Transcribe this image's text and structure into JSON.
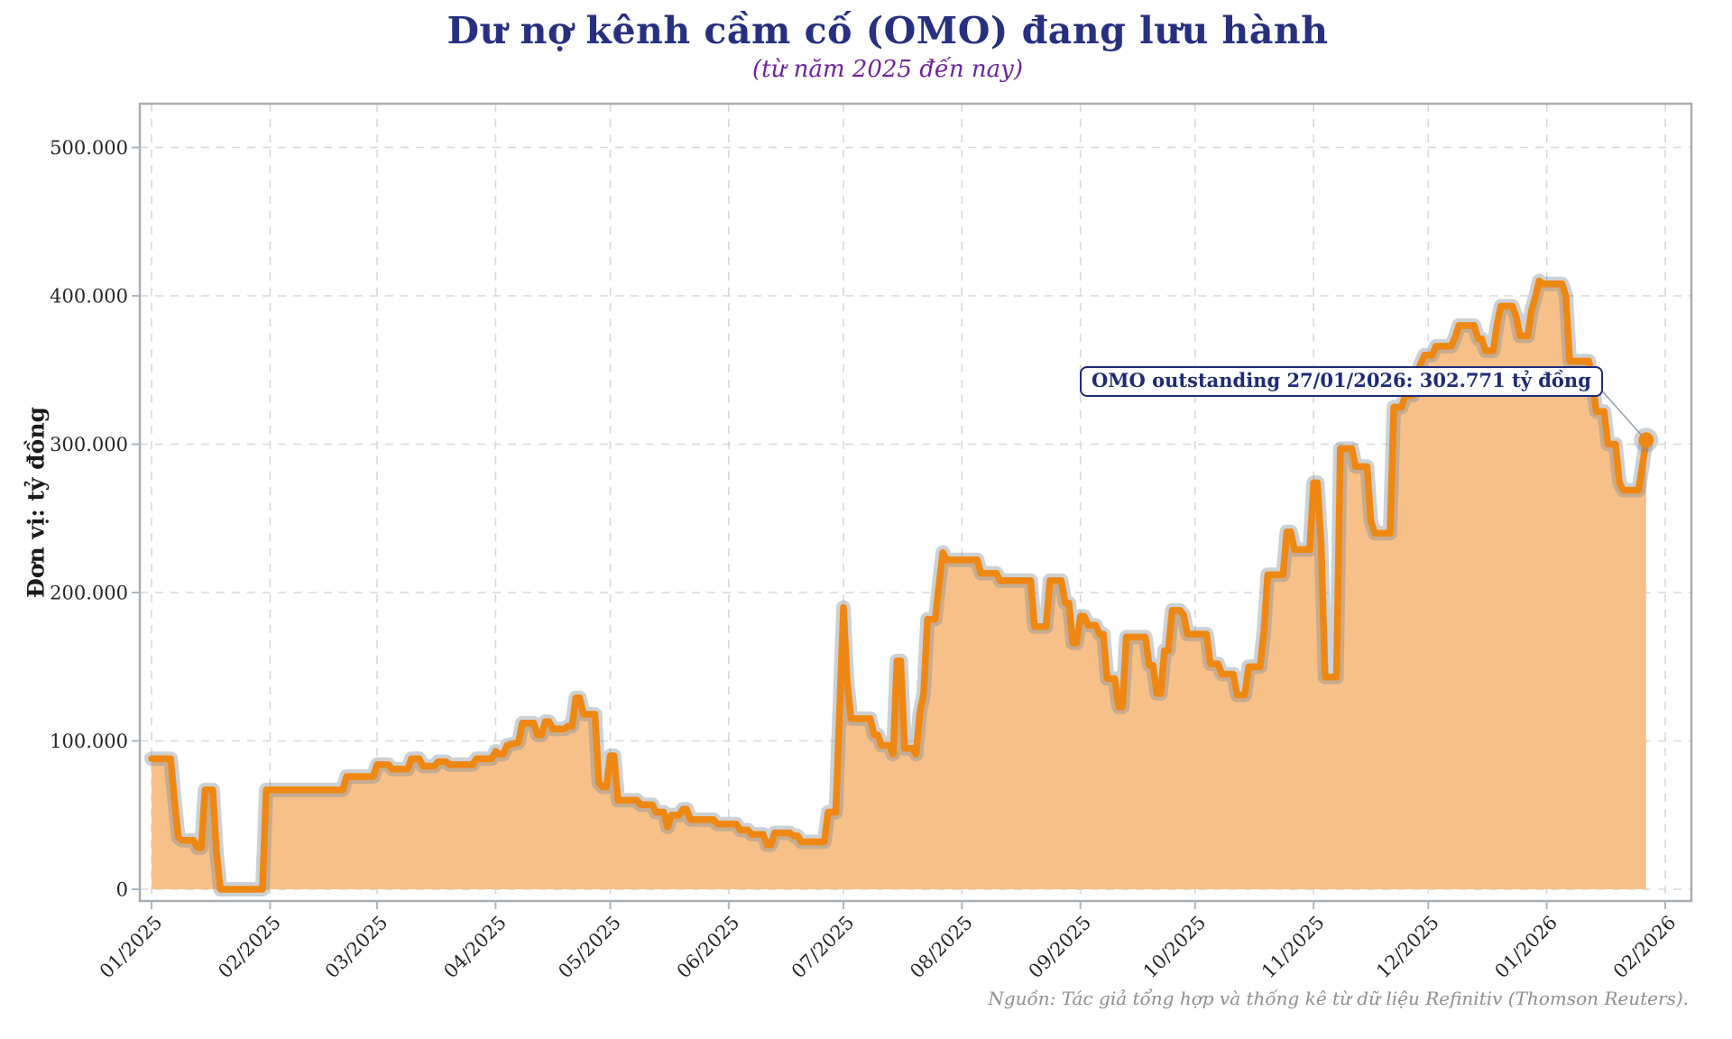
{
  "title": "Dư nợ kênh cầm cố (OMO) đang lưu hành",
  "subtitle": "(từ năm 2025 đến nay)",
  "source": "Nguồn: Tác giả tổng hợp và thống kê từ dữ liệu Refinitiv (Thomson Reuters).",
  "annotation": {
    "text": "OMO outstanding 27/01/2026: 302.771 tỷ đồng",
    "point_date": "2026-01-27",
    "point_value": 302771
  },
  "colors": {
    "line": "#ef8812",
    "fill": "#f7c088",
    "halo": "rgba(127,140,152,0.40)",
    "grid": "#d8d8d8",
    "border": "#a9aeb3",
    "tick_mark": "#a9b7c1",
    "leader": "#9aa5ad",
    "title": "#273080",
    "subtitle": "#6f229c",
    "annotation": "#1d2b76",
    "tick_text": "#262626",
    "source_text": "#8e8e8e"
  },
  "chart_data": {
    "type": "area",
    "title": "Dư nợ kênh cầm cố (OMO) đang lưu hành",
    "subtitle": "(từ năm 2025 đến nay)",
    "ylabel": "Đơn vị: tỷ đồng",
    "xlabel": "",
    "grid": true,
    "ylim": [
      0,
      530000
    ],
    "x_range": [
      "2025-01-01",
      "2026-02-01"
    ],
    "y_ticks": [
      {
        "value": 0,
        "label": "0"
      },
      {
        "value": 100000,
        "label": "100.000"
      },
      {
        "value": 200000,
        "label": "200.000"
      },
      {
        "value": 300000,
        "label": "300.000"
      },
      {
        "value": 400000,
        "label": "400.000"
      },
      {
        "value": 500000,
        "label": "500.000"
      }
    ],
    "x_ticks": [
      "01/2025",
      "02/2025",
      "03/2025",
      "04/2025",
      "05/2025",
      "06/2025",
      "07/2025",
      "08/2025",
      "09/2025",
      "10/2025",
      "11/2025",
      "12/2025",
      "01/2026",
      "02/2026"
    ],
    "series_name": "OMO outstanding (tỷ đồng)",
    "points": [
      [
        "2025-01-01",
        88000
      ],
      [
        "2025-01-06",
        88000
      ],
      [
        "2025-01-07",
        60000
      ],
      [
        "2025-01-08",
        35000
      ],
      [
        "2025-01-09",
        33000
      ],
      [
        "2025-01-12",
        33000
      ],
      [
        "2025-01-13",
        28000
      ],
      [
        "2025-01-14",
        28000
      ],
      [
        "2025-01-15",
        67000
      ],
      [
        "2025-01-17",
        67000
      ],
      [
        "2025-01-18",
        25000
      ],
      [
        "2025-01-19",
        0
      ],
      [
        "2025-01-30",
        0
      ],
      [
        "2025-01-31",
        67000
      ],
      [
        "2025-02-20",
        67000
      ],
      [
        "2025-02-21",
        76000
      ],
      [
        "2025-02-28",
        76000
      ],
      [
        "2025-03-01",
        84000
      ],
      [
        "2025-03-04",
        84000
      ],
      [
        "2025-03-05",
        81000
      ],
      [
        "2025-03-09",
        81000
      ],
      [
        "2025-03-10",
        88000
      ],
      [
        "2025-03-12",
        88000
      ],
      [
        "2025-03-13",
        83000
      ],
      [
        "2025-03-16",
        83000
      ],
      [
        "2025-03-17",
        86000
      ],
      [
        "2025-03-19",
        86000
      ],
      [
        "2025-03-20",
        84000
      ],
      [
        "2025-03-26",
        84000
      ],
      [
        "2025-03-27",
        88000
      ],
      [
        "2025-03-31",
        88000
      ],
      [
        "2025-04-01",
        93000
      ],
      [
        "2025-04-02",
        91000
      ],
      [
        "2025-04-03",
        91000
      ],
      [
        "2025-04-04",
        97000
      ],
      [
        "2025-04-07",
        99000
      ],
      [
        "2025-04-08",
        112000
      ],
      [
        "2025-04-11",
        112000
      ],
      [
        "2025-04-12",
        104000
      ],
      [
        "2025-04-13",
        104000
      ],
      [
        "2025-04-14",
        113000
      ],
      [
        "2025-04-15",
        113000
      ],
      [
        "2025-04-16",
        108000
      ],
      [
        "2025-04-19",
        108000
      ],
      [
        "2025-04-20",
        110000
      ],
      [
        "2025-04-21",
        110000
      ],
      [
        "2025-04-22",
        129000
      ],
      [
        "2025-04-23",
        129000
      ],
      [
        "2025-04-24",
        118000
      ],
      [
        "2025-04-27",
        118000
      ],
      [
        "2025-04-28",
        72000
      ],
      [
        "2025-04-29",
        69000
      ],
      [
        "2025-04-30",
        69000
      ],
      [
        "2025-05-01",
        90000
      ],
      [
        "2025-05-02",
        90000
      ],
      [
        "2025-05-03",
        60000
      ],
      [
        "2025-05-08",
        60000
      ],
      [
        "2025-05-09",
        57000
      ],
      [
        "2025-05-12",
        57000
      ],
      [
        "2025-05-13",
        52000
      ],
      [
        "2025-05-15",
        52000
      ],
      [
        "2025-05-16",
        42000
      ],
      [
        "2025-05-17",
        50000
      ],
      [
        "2025-05-19",
        50000
      ],
      [
        "2025-05-20",
        54000
      ],
      [
        "2025-05-21",
        54000
      ],
      [
        "2025-05-22",
        47000
      ],
      [
        "2025-05-28",
        47000
      ],
      [
        "2025-05-29",
        44000
      ],
      [
        "2025-06-03",
        44000
      ],
      [
        "2025-06-04",
        40000
      ],
      [
        "2025-06-06",
        40000
      ],
      [
        "2025-06-07",
        37000
      ],
      [
        "2025-06-10",
        37000
      ],
      [
        "2025-06-11",
        30000
      ],
      [
        "2025-06-12",
        30000
      ],
      [
        "2025-06-13",
        38000
      ],
      [
        "2025-06-17",
        38000
      ],
      [
        "2025-06-18",
        36000
      ],
      [
        "2025-06-19",
        36000
      ],
      [
        "2025-06-20",
        32000
      ],
      [
        "2025-06-26",
        32000
      ],
      [
        "2025-06-27",
        52000
      ],
      [
        "2025-06-29",
        52000
      ],
      [
        "2025-06-30",
        120000
      ],
      [
        "2025-07-01",
        190000
      ],
      [
        "2025-07-02",
        140000
      ],
      [
        "2025-07-03",
        115000
      ],
      [
        "2025-07-08",
        115000
      ],
      [
        "2025-07-09",
        104000
      ],
      [
        "2025-07-10",
        104000
      ],
      [
        "2025-07-11",
        97000
      ],
      [
        "2025-07-13",
        97000
      ],
      [
        "2025-07-14",
        91000
      ],
      [
        "2025-07-15",
        154000
      ],
      [
        "2025-07-16",
        154000
      ],
      [
        "2025-07-17",
        95000
      ],
      [
        "2025-07-19",
        95000
      ],
      [
        "2025-07-20",
        91000
      ],
      [
        "2025-07-21",
        119000
      ],
      [
        "2025-07-22",
        132000
      ],
      [
        "2025-07-23",
        182000
      ],
      [
        "2025-07-25",
        182000
      ],
      [
        "2025-07-26",
        205000
      ],
      [
        "2025-07-27",
        227000
      ],
      [
        "2025-07-28",
        222000
      ],
      [
        "2025-08-05",
        222000
      ],
      [
        "2025-08-06",
        213000
      ],
      [
        "2025-08-10",
        213000
      ],
      [
        "2025-08-11",
        208000
      ],
      [
        "2025-08-19",
        208000
      ],
      [
        "2025-08-20",
        177000
      ],
      [
        "2025-08-23",
        177000
      ],
      [
        "2025-08-24",
        208000
      ],
      [
        "2025-08-27",
        208000
      ],
      [
        "2025-08-28",
        193000
      ],
      [
        "2025-08-29",
        193000
      ],
      [
        "2025-08-30",
        166000
      ],
      [
        "2025-08-31",
        166000
      ],
      [
        "2025-09-01",
        184000
      ],
      [
        "2025-09-02",
        184000
      ],
      [
        "2025-09-03",
        178000
      ],
      [
        "2025-09-05",
        178000
      ],
      [
        "2025-09-06",
        172000
      ],
      [
        "2025-09-07",
        172000
      ],
      [
        "2025-09-08",
        142000
      ],
      [
        "2025-09-10",
        142000
      ],
      [
        "2025-09-11",
        123000
      ],
      [
        "2025-09-12",
        123000
      ],
      [
        "2025-09-13",
        170000
      ],
      [
        "2025-09-18",
        170000
      ],
      [
        "2025-09-19",
        151000
      ],
      [
        "2025-09-20",
        151000
      ],
      [
        "2025-09-21",
        132000
      ],
      [
        "2025-09-22",
        132000
      ],
      [
        "2025-09-23",
        161000
      ],
      [
        "2025-09-24",
        161000
      ],
      [
        "2025-09-25",
        188000
      ],
      [
        "2025-09-27",
        188000
      ],
      [
        "2025-09-28",
        185000
      ],
      [
        "2025-09-29",
        172000
      ],
      [
        "2025-10-04",
        172000
      ],
      [
        "2025-10-05",
        152000
      ],
      [
        "2025-10-07",
        152000
      ],
      [
        "2025-10-08",
        145000
      ],
      [
        "2025-10-11",
        145000
      ],
      [
        "2025-10-12",
        131000
      ],
      [
        "2025-10-14",
        131000
      ],
      [
        "2025-10-15",
        150000
      ],
      [
        "2025-10-18",
        150000
      ],
      [
        "2025-10-19",
        174000
      ],
      [
        "2025-10-20",
        212000
      ],
      [
        "2025-10-24",
        212000
      ],
      [
        "2025-10-25",
        241000
      ],
      [
        "2025-10-26",
        241000
      ],
      [
        "2025-10-27",
        229000
      ],
      [
        "2025-10-31",
        229000
      ],
      [
        "2025-11-01",
        274000
      ],
      [
        "2025-11-02",
        274000
      ],
      [
        "2025-11-03",
        232000
      ],
      [
        "2025-11-04",
        143000
      ],
      [
        "2025-11-07",
        143000
      ],
      [
        "2025-11-08",
        297000
      ],
      [
        "2025-11-11",
        297000
      ],
      [
        "2025-11-12",
        285000
      ],
      [
        "2025-11-15",
        285000
      ],
      [
        "2025-11-16",
        248000
      ],
      [
        "2025-11-17",
        240000
      ],
      [
        "2025-11-21",
        240000
      ],
      [
        "2025-11-22",
        325000
      ],
      [
        "2025-11-24",
        325000
      ],
      [
        "2025-11-25",
        333000
      ],
      [
        "2025-11-27",
        333000
      ],
      [
        "2025-11-28",
        348000
      ],
      [
        "2025-11-30",
        360000
      ],
      [
        "2025-12-02",
        360000
      ],
      [
        "2025-12-03",
        366000
      ],
      [
        "2025-12-07",
        366000
      ],
      [
        "2025-12-08",
        372000
      ],
      [
        "2025-12-09",
        380000
      ],
      [
        "2025-12-13",
        380000
      ],
      [
        "2025-12-14",
        371000
      ],
      [
        "2025-12-15",
        371000
      ],
      [
        "2025-12-16",
        363000
      ],
      [
        "2025-12-18",
        363000
      ],
      [
        "2025-12-19",
        381000
      ],
      [
        "2025-12-20",
        393000
      ],
      [
        "2025-12-23",
        393000
      ],
      [
        "2025-12-24",
        386000
      ],
      [
        "2025-12-25",
        373000
      ],
      [
        "2025-12-27",
        373000
      ],
      [
        "2025-12-28",
        390000
      ],
      [
        "2025-12-29",
        399000
      ],
      [
        "2025-12-30",
        410000
      ],
      [
        "2025-12-31",
        408000
      ],
      [
        "2026-01-05",
        408000
      ],
      [
        "2026-01-06",
        400000
      ],
      [
        "2026-01-07",
        356000
      ],
      [
        "2026-01-12",
        356000
      ],
      [
        "2026-01-13",
        340000
      ],
      [
        "2026-01-14",
        322000
      ],
      [
        "2026-01-16",
        322000
      ],
      [
        "2026-01-17",
        300000
      ],
      [
        "2026-01-19",
        300000
      ],
      [
        "2026-01-20",
        274000
      ],
      [
        "2026-01-21",
        269000
      ],
      [
        "2026-01-25",
        269000
      ],
      [
        "2026-01-26",
        285000
      ],
      [
        "2026-01-27",
        302771
      ]
    ],
    "last_point": {
      "date": "2026-01-27",
      "value": 302771
    },
    "legend": null
  }
}
